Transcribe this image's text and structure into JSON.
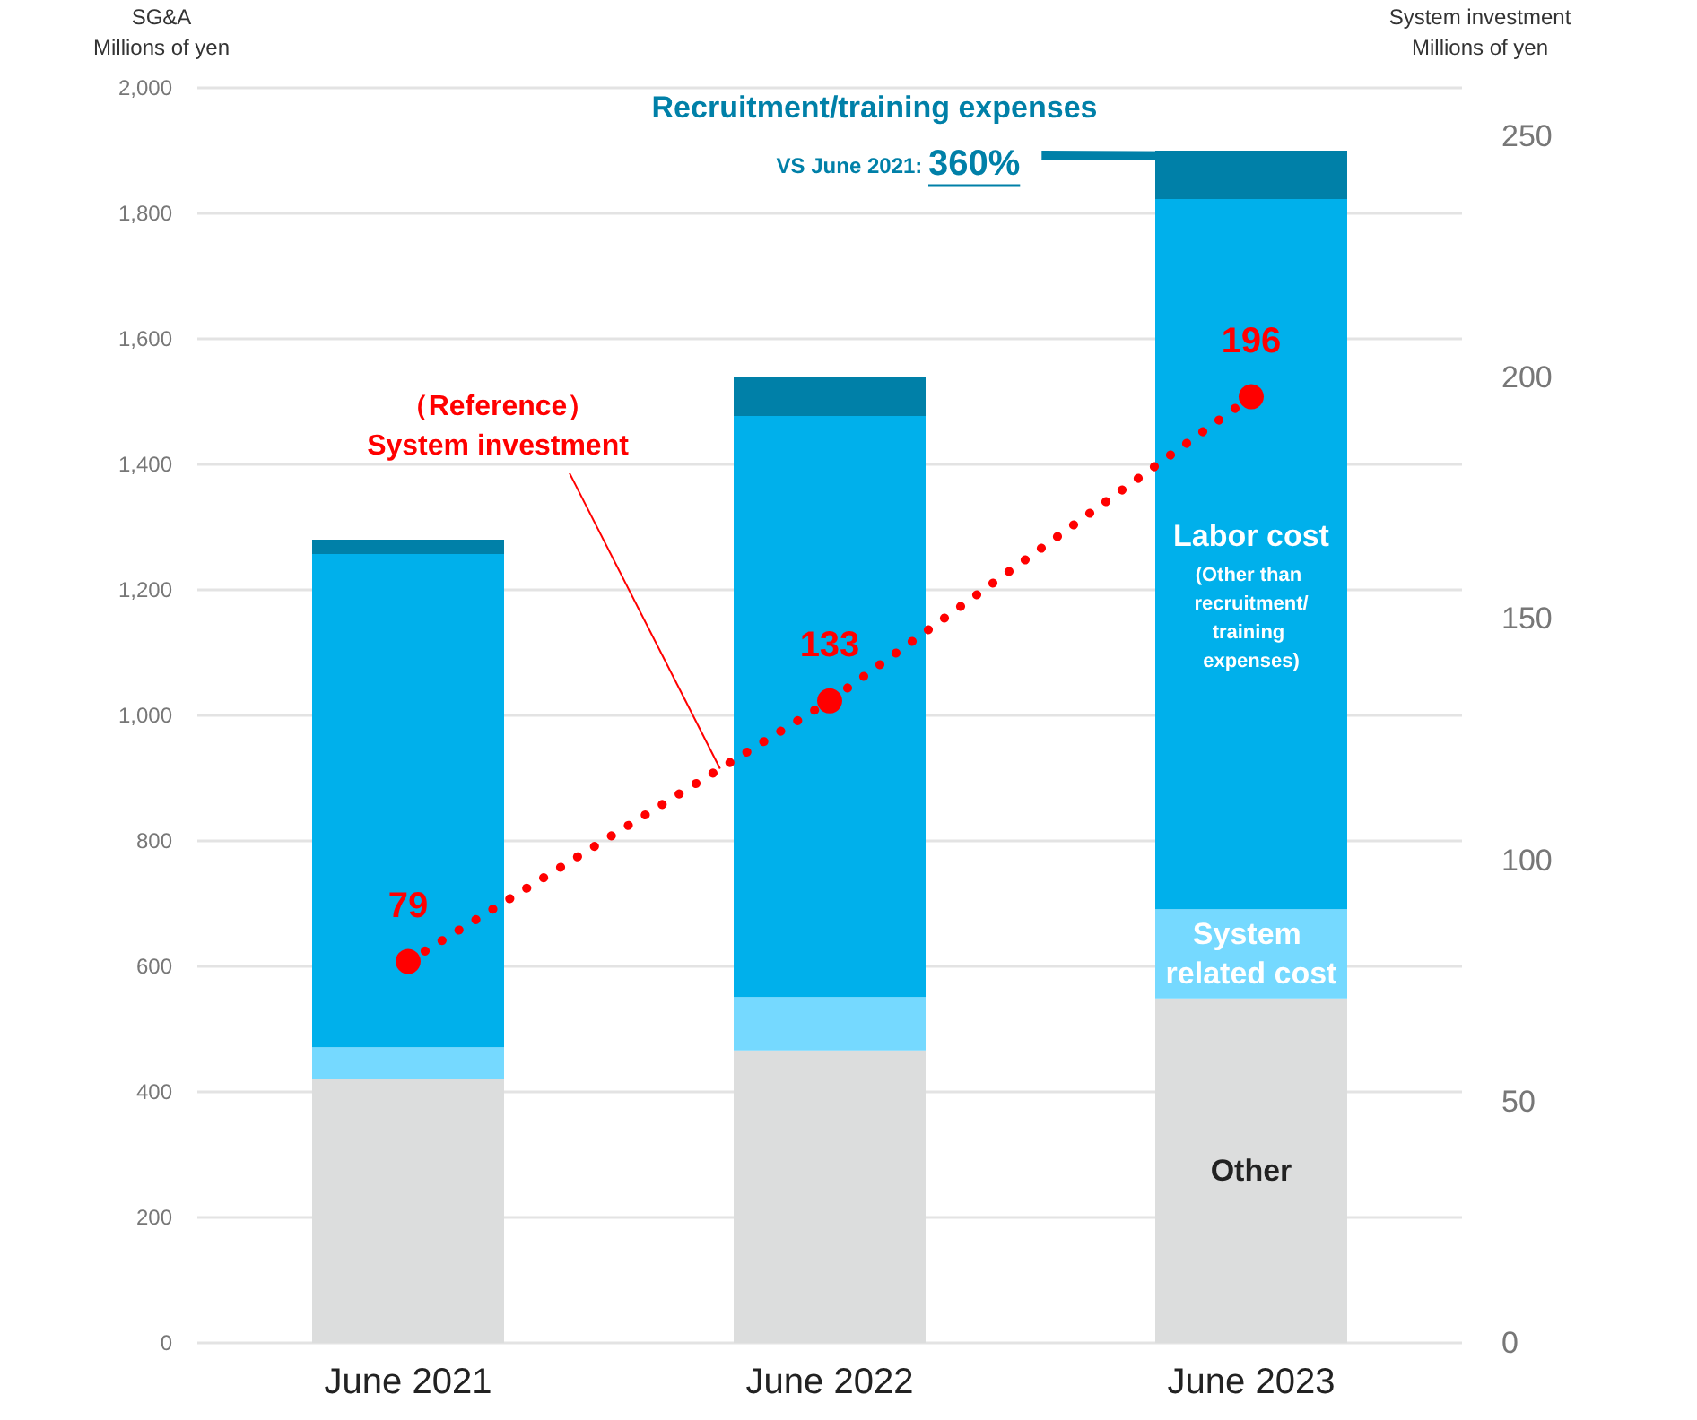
{
  "chart_data": {
    "type": "bar",
    "stacked": true,
    "ylabel": "SG&A\nMillions of yen",
    "y2label": "System investment\nMillions of yen",
    "categories": [
      "June 2021",
      "June 2022",
      "June 2023"
    ],
    "ylim": [
      0,
      2000
    ],
    "yticks": [
      0,
      200,
      400,
      600,
      800,
      {
        "value": 1000,
        "label": "1,000"
      },
      {
        "value": 1200,
        "label": "1,200"
      },
      {
        "value": 1400,
        "label": "1,400"
      },
      {
        "value": 1600,
        "label": "1,600"
      },
      {
        "value": 1800,
        "label": "1,800"
      },
      {
        "value": 2000,
        "label": "2,000"
      }
    ],
    "y2lim": [
      0,
      260
    ],
    "y2ticks": [
      0,
      50,
      100,
      150,
      200,
      250
    ],
    "grid": "y",
    "legend": false,
    "series": [
      {
        "name": "Other",
        "color": "#dcdddd",
        "values": [
          420,
          466,
          549
        ]
      },
      {
        "name": "System related cost",
        "color": "#75d9ff",
        "values": [
          51,
          85,
          142
        ]
      },
      {
        "name": "Labor cost",
        "color": "#00b0eb",
        "values": [
          786,
          926,
          1132
        ]
      },
      {
        "name": "Recruitment/training expenses",
        "color": "#0080a8",
        "values": [
          23,
          63,
          77
        ]
      },
      {
        "name": "System investment",
        "type": "line",
        "axis": "y2",
        "color": "#ff0000",
        "values": [
          79,
          133,
          196
        ],
        "data_labels": true,
        "marker": "circle",
        "line_style": "dotted"
      }
    ],
    "annotations": [
      "(Other than recruitment/training expenses)",
      {
        "text": "VS June 2021: 360%",
        "x": "June 2023",
        "y": 1900
      },
      "（Reference）"
    ]
  }
}
